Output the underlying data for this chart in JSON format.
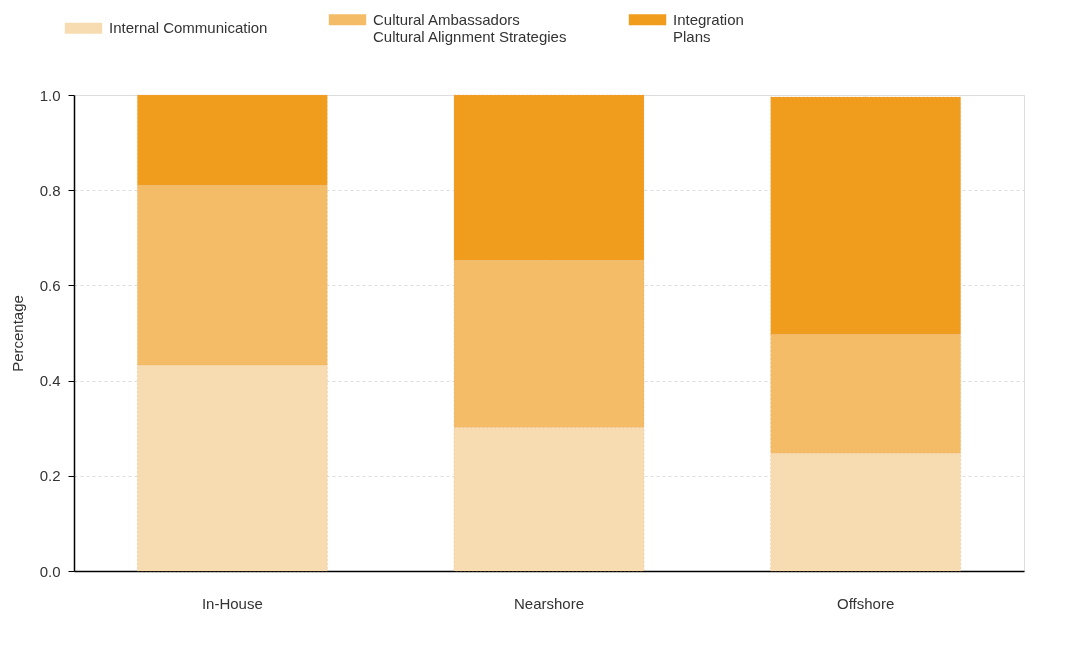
{
  "chart_data": {
    "type": "bar",
    "stacked": true,
    "ylabel": "Percentage",
    "categories": [
      "In-House",
      "Nearshore",
      "Offshore"
    ],
    "series": [
      {
        "name": "Internal Communication",
        "color": "#f8dcb1",
        "values": [
          0.433,
          0.302,
          0.248
        ]
      },
      {
        "name": "Cultural Ambassadors\nCultural Alignment Strategies",
        "color": "#f4bc67",
        "values": [
          0.378,
          0.351,
          0.25
        ]
      },
      {
        "name": "Integration\nPlans",
        "color": "#f09c1c",
        "values": [
          0.189,
          0.347,
          0.498
        ]
      }
    ],
    "ylim": [
      0,
      1
    ],
    "yticks": [
      {
        "value": 0,
        "label": "0.0"
      },
      0.2,
      0.4,
      0.6,
      0.8,
      {
        "value": 1,
        "label": "1.0"
      }
    ],
    "grid": true,
    "legend": "top"
  }
}
